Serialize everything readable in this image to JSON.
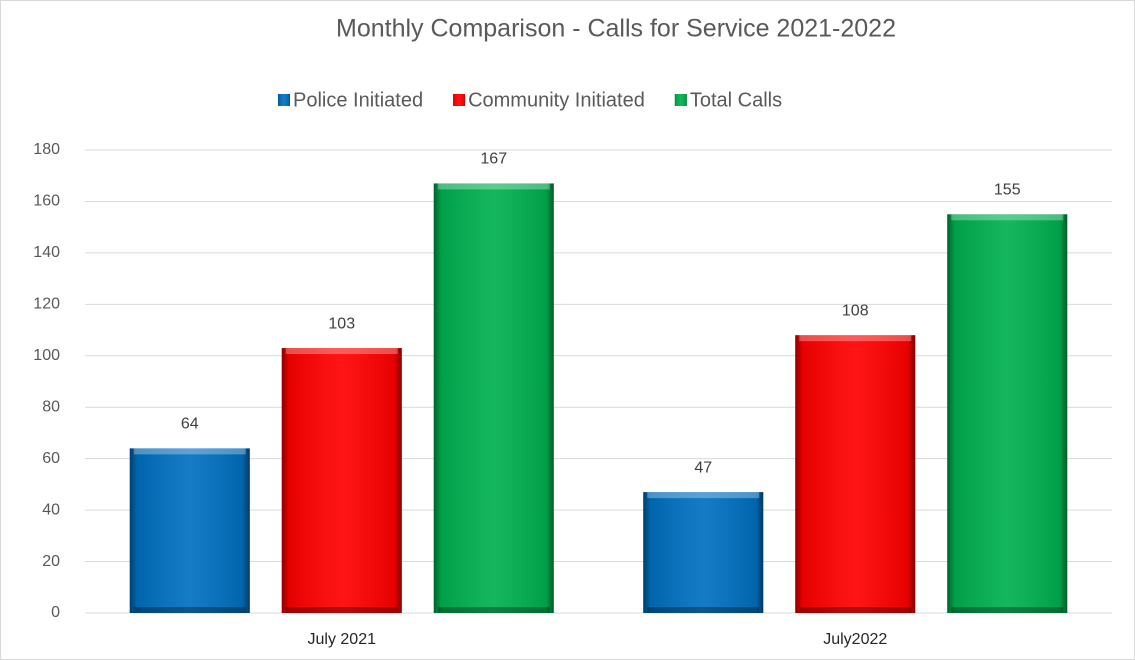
{
  "chart_data": {
    "type": "bar",
    "title": "Monthly Comparison - Calls for Service 2021-2022",
    "categories": [
      "July 2021",
      "July2022"
    ],
    "series": [
      {
        "name": "Police Initiated",
        "color": "#0070c0",
        "values": [
          64,
          47
        ]
      },
      {
        "name": "Community Initiated",
        "color": "#ff0000",
        "values": [
          103,
          108
        ]
      },
      {
        "name": "Total Calls",
        "color": "#00b050",
        "values": [
          167,
          155
        ]
      }
    ],
    "ylim": [
      0,
      180
    ],
    "yticks": [
      0,
      20,
      40,
      60,
      80,
      100,
      120,
      140,
      160,
      180
    ],
    "grid": true,
    "legend": "top"
  }
}
